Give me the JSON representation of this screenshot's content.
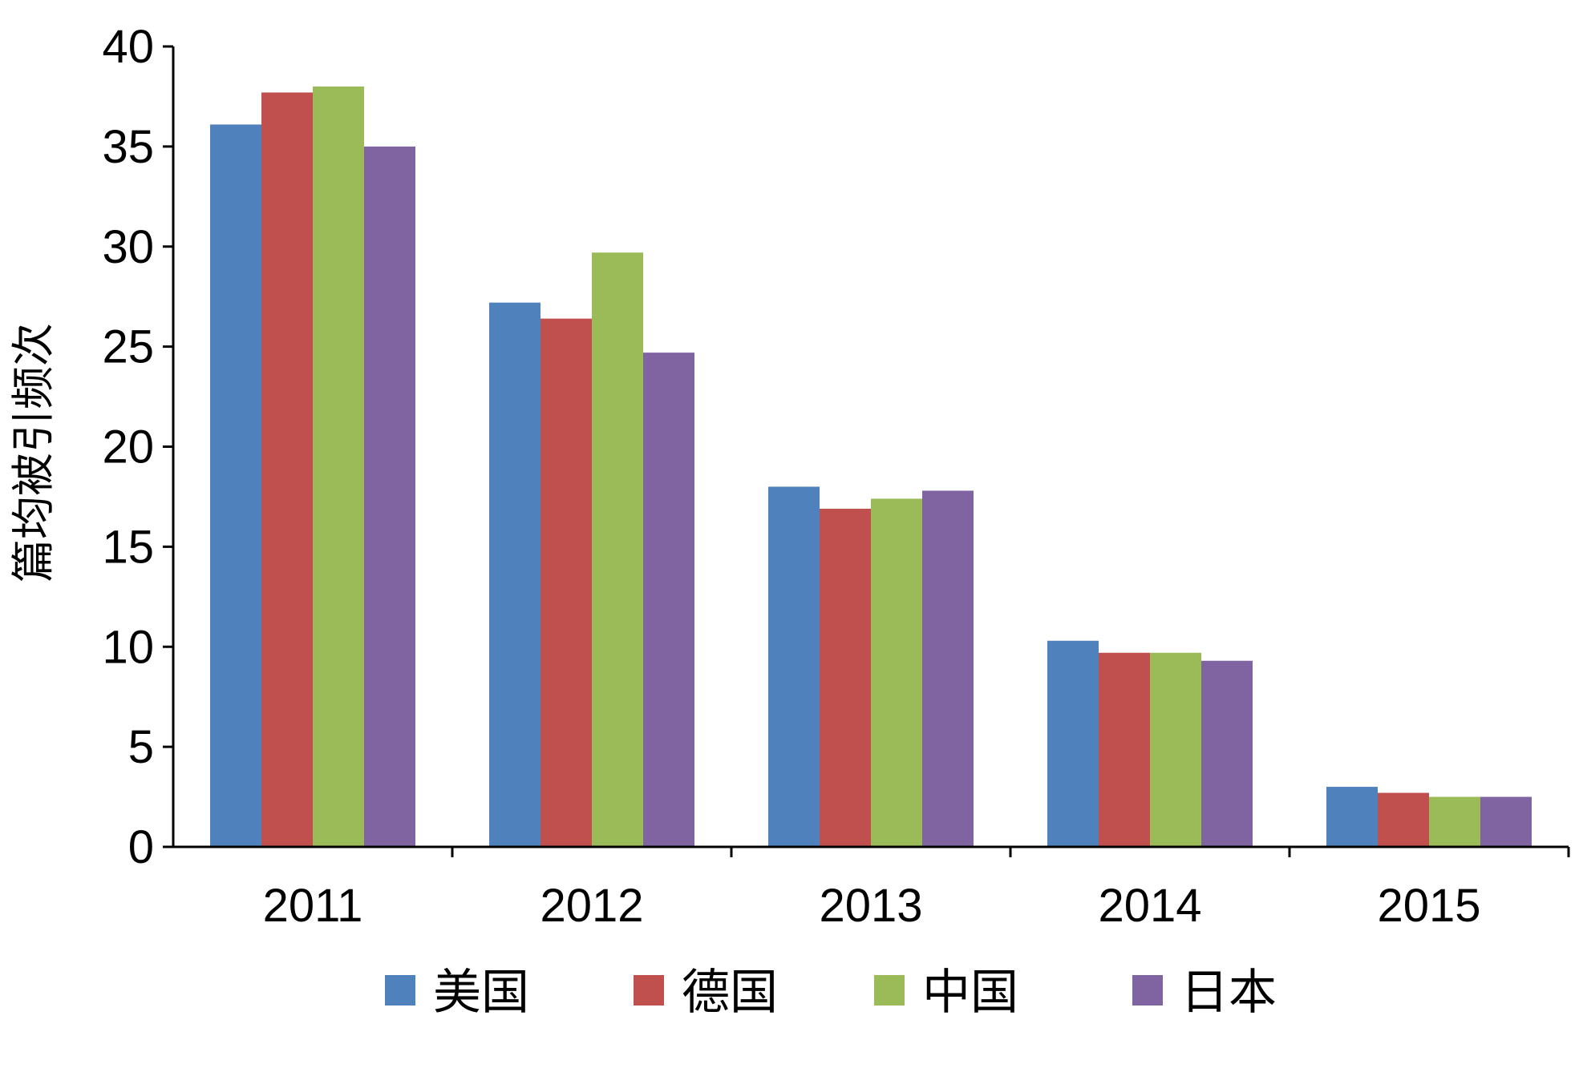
{
  "chart_data": {
    "type": "bar",
    "title": "",
    "xlabel": "",
    "ylabel": "篇均被引频次",
    "categories": [
      "2011",
      "2012",
      "2013",
      "2014",
      "2015"
    ],
    "ylim": [
      0,
      40
    ],
    "yticks": [
      0,
      5,
      10,
      15,
      20,
      25,
      30,
      35,
      40
    ],
    "grid": false,
    "legend": {
      "position": "bottom"
    },
    "series": [
      {
        "name": "美国",
        "color": "#4F81BD",
        "values": [
          36.1,
          27.2,
          18.0,
          10.3,
          3.0
        ]
      },
      {
        "name": "德国",
        "color": "#C0504D",
        "values": [
          37.7,
          26.4,
          16.9,
          9.7,
          2.7
        ]
      },
      {
        "name": "中国",
        "color": "#9BBB59",
        "values": [
          38.0,
          29.7,
          17.4,
          9.7,
          2.5
        ]
      },
      {
        "name": "日本",
        "color": "#8064A2",
        "values": [
          35.0,
          24.7,
          17.8,
          9.3,
          2.5
        ]
      }
    ]
  }
}
